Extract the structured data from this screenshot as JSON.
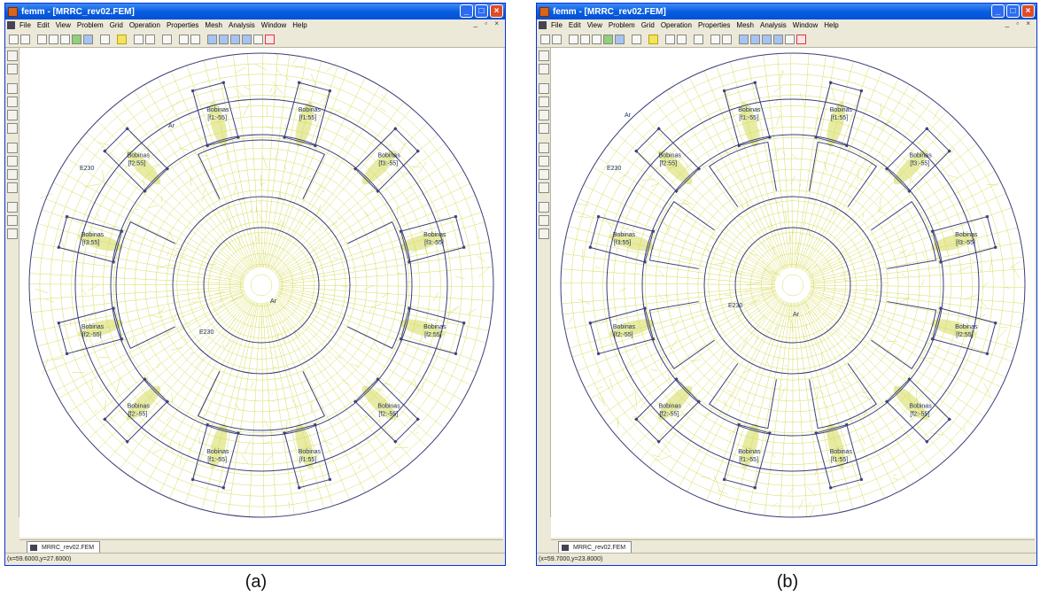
{
  "panels": [
    {
      "title": "femm - [MRRC_rev02.FEM]",
      "menus": [
        "File",
        "Edit",
        "View",
        "Problem",
        "Grid",
        "Operation",
        "Properties",
        "Mesh",
        "Analysis",
        "Window",
        "Help"
      ],
      "doc_tab": "MRRC_rev02.FEM",
      "status": "(x=59.6000,y=27.6000)",
      "caption": "(a)",
      "material_labels": [
        "Ar",
        "E230",
        "Ar",
        "E230"
      ],
      "coils": [
        {
          "name": "Bobinas",
          "circuit": "[f1:-55]"
        },
        {
          "name": "Bobinas",
          "circuit": "[f1:55]"
        },
        {
          "name": "Bobinas",
          "circuit": "[f3:-55]"
        },
        {
          "name": "Bobinas",
          "circuit": "[f3:-55]"
        },
        {
          "name": "Bobinas",
          "circuit": "[f2:55]"
        },
        {
          "name": "Bobinas",
          "circuit": "[f2:-55]"
        },
        {
          "name": "Bobinas",
          "circuit": "[f1:55]"
        },
        {
          "name": "Bobinas",
          "circuit": "[f1:-55]"
        },
        {
          "name": "Bobinas",
          "circuit": "[f2:-55]"
        },
        {
          "name": "Bobinas",
          "circuit": "[f2:-55]"
        },
        {
          "name": "Bobinas",
          "circuit": "[f3:55]"
        },
        {
          "name": "Bobinas",
          "circuit": "[f2:55]"
        }
      ]
    },
    {
      "title": "femm - [MRRC_rev02.FEM]",
      "menus": [
        "File",
        "Edit",
        "View",
        "Problem",
        "Grid",
        "Operation",
        "Properties",
        "Mesh",
        "Analysis",
        "Window",
        "Help"
      ],
      "doc_tab": "MRRC_rev02.FEM",
      "status": "(x=59.7000,y=23.8000)",
      "caption": "(b)",
      "material_labels": [
        "Ar",
        "E230",
        "E230",
        "Ar"
      ],
      "coils": [
        {
          "name": "Bobinas",
          "circuit": "[f1:-55]"
        },
        {
          "name": "Bobinas",
          "circuit": "[f1:55]"
        },
        {
          "name": "Bobinas",
          "circuit": "[f3:-55]"
        },
        {
          "name": "Bobinas",
          "circuit": "[f3:-55]"
        },
        {
          "name": "Bobinas",
          "circuit": "[f2:55]"
        },
        {
          "name": "Bobinas",
          "circuit": "[f2:-55]"
        },
        {
          "name": "Bobinas",
          "circuit": "[f1:55]"
        },
        {
          "name": "Bobinas",
          "circuit": "[f1:-55]"
        },
        {
          "name": "Bobinas",
          "circuit": "[f2:-55]"
        },
        {
          "name": "Bobinas",
          "circuit": "[f2:-55]"
        },
        {
          "name": "Bobinas",
          "circuit": "[f3:55]"
        },
        {
          "name": "Bobinas",
          "circuit": "[f2:55]"
        }
      ]
    }
  ],
  "colors": {
    "mesh": "#d7dc5a",
    "geometry": "#3a3f7a",
    "title_bar": "#0a5fe0"
  }
}
